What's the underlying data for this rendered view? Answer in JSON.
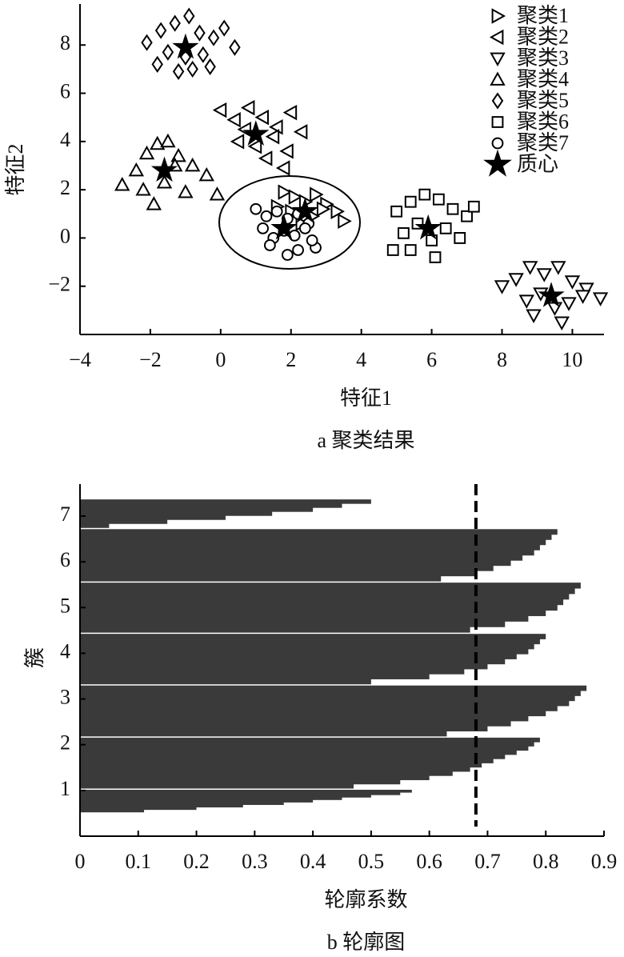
{
  "chart_data": [
    {
      "type": "scatter",
      "title": "a 聚类结果",
      "xlabel": "特征1",
      "ylabel": "特征2",
      "xlim": [
        -4,
        10.9
      ],
      "ylim": [
        -4,
        9.7
      ],
      "xticks": [
        {
          "value": -4,
          "label": "−4"
        },
        {
          "value": -2,
          "label": "−2"
        },
        0,
        2,
        4,
        6,
        8,
        10
      ],
      "yticks": [
        {
          "value": -2,
          "label": "−2"
        },
        0,
        2,
        4,
        6,
        8
      ],
      "legend": "upper right",
      "color": "#000000",
      "series": [
        {
          "name": "聚类1",
          "marker": "triangle-right",
          "x": [
            1.8,
            2.1,
            2.4,
            2.7,
            3.0,
            3.3,
            3.5,
            2.0,
            2.6,
            2.9,
            1.6,
            2.3
          ],
          "y": [
            1.9,
            1.7,
            1.5,
            1.8,
            1.4,
            1.1,
            0.7,
            1.1,
            0.9,
            1.2,
            1.3,
            0.6
          ]
        },
        {
          "name": "聚类2",
          "marker": "triangle-left",
          "x": [
            0,
            0.4,
            0.8,
            1.2,
            1.6,
            2.0,
            2.3,
            0.5,
            1.0,
            1.5,
            1.9,
            1.3,
            0.7,
            1.8
          ],
          "y": [
            5.3,
            4.9,
            5.4,
            5.0,
            4.6,
            5.2,
            4.4,
            4.0,
            3.8,
            4.2,
            3.6,
            3.3,
            4.5,
            2.9
          ]
        },
        {
          "name": "聚类3",
          "marker": "triangle-down",
          "x": [
            8,
            8.4,
            8.8,
            9.2,
            9.6,
            10,
            10.4,
            10.8,
            8.7,
            9.1,
            9.5,
            9.9,
            10.3,
            8.9,
            9.7
          ],
          "y": [
            -2.0,
            -1.7,
            -1.2,
            -1.5,
            -1.2,
            -1.8,
            -2.1,
            -2.5,
            -2.6,
            -2.3,
            -2.9,
            -2.7,
            -2.4,
            -3.2,
            -3.5
          ]
        },
        {
          "name": "聚类4",
          "marker": "triangle-up",
          "x": [
            -2.8,
            -2.4,
            -2.1,
            -1.8,
            -1.5,
            -1.2,
            -0.8,
            -0.4,
            -0.1,
            -2.2,
            -1.6,
            -1.0,
            -1.9,
            -1.3
          ],
          "y": [
            2.2,
            2.8,
            3.5,
            3.9,
            4.0,
            3.4,
            3.0,
            2.6,
            1.8,
            2.0,
            2.3,
            1.9,
            1.4,
            3.0
          ]
        },
        {
          "name": "聚类5",
          "marker": "diamond",
          "x": [
            -2.1,
            -1.7,
            -1.3,
            -0.9,
            -0.6,
            -0.2,
            0.1,
            0.4,
            -1.5,
            -1.0,
            -0.5,
            -1.8,
            -1.2,
            -0.8,
            -0.3
          ],
          "y": [
            8.1,
            8.6,
            8.9,
            9.2,
            8.5,
            8.3,
            8.7,
            7.9,
            7.7,
            7.5,
            7.6,
            7.2,
            6.9,
            7.0,
            7.1
          ]
        },
        {
          "name": "聚类6",
          "marker": "square",
          "x": [
            5,
            5.4,
            5.8,
            6.2,
            6.6,
            7.0,
            7.2,
            5.2,
            5.6,
            6.0,
            6.4,
            6.8,
            5.4,
            6.1,
            4.9
          ],
          "y": [
            1.1,
            1.5,
            1.8,
            1.6,
            1.2,
            0.9,
            1.3,
            0.2,
            0.6,
            -0.1,
            0.4,
            0.0,
            -0.5,
            -0.8,
            -0.5
          ]
        },
        {
          "name": "聚类7",
          "marker": "circle",
          "x": [
            1.0,
            1.3,
            1.6,
            1.9,
            2.2,
            2.5,
            1.2,
            1.5,
            1.8,
            2.1,
            2.4,
            2.7,
            1.4,
            1.9,
            2.2,
            2.6
          ],
          "y": [
            1.2,
            0.9,
            1.1,
            0.8,
            1.0,
            0.6,
            0.4,
            0.0,
            0.3,
            0.1,
            0.4,
            -0.4,
            -0.3,
            -0.7,
            -0.5,
            -0.1
          ]
        },
        {
          "name": "质心",
          "marker": "star",
          "x": [
            2.4,
            1.0,
            9.4,
            -1.6,
            -1.0,
            5.9,
            1.8
          ],
          "y": [
            1.1,
            4.3,
            -2.4,
            2.8,
            7.9,
            0.4,
            0.4
          ]
        }
      ]
    },
    {
      "type": "silhouette",
      "title": "b 轮廓图",
      "xlabel": "轮廓系数",
      "ylabel": "簇",
      "xlim": [
        0,
        0.9
      ],
      "ylim": [
        0,
        7.7
      ],
      "xticks": [
        0,
        0.1,
        0.2,
        0.3,
        0.4,
        0.5,
        0.6,
        0.7,
        0.8,
        0.9
      ],
      "yticks": [
        1,
        2,
        3,
        4,
        5,
        6,
        7
      ],
      "color": "#3a3a3a",
      "threshold": 0.68,
      "clusters": [
        {
          "range": [
            0.53,
            1.05
          ],
          "values": [
            0.11,
            0.2,
            0.28,
            0.35,
            0.4,
            0.45,
            0.5,
            0.55,
            0.57
          ]
        },
        {
          "range": [
            1.05,
            2.19
          ],
          "values": [
            0.47,
            0.55,
            0.6,
            0.64,
            0.67,
            0.69,
            0.71,
            0.73,
            0.75,
            0.77,
            0.78,
            0.79
          ]
        },
        {
          "range": [
            2.19,
            3.33
          ],
          "values": [
            0.63,
            0.7,
            0.74,
            0.77,
            0.8,
            0.82,
            0.84,
            0.85,
            0.86,
            0.87
          ]
        },
        {
          "range": [
            3.33,
            4.46
          ],
          "values": [
            0.5,
            0.6,
            0.66,
            0.7,
            0.73,
            0.75,
            0.77,
            0.78,
            0.79,
            0.8
          ]
        },
        {
          "range": [
            4.46,
            5.58
          ],
          "values": [
            0.67,
            0.73,
            0.77,
            0.8,
            0.82,
            0.83,
            0.84,
            0.85,
            0.86
          ]
        },
        {
          "range": [
            5.58,
            6.75
          ],
          "values": [
            0.62,
            0.68,
            0.71,
            0.74,
            0.76,
            0.78,
            0.79,
            0.8,
            0.81,
            0.82
          ]
        },
        {
          "range": [
            6.75,
            7.4
          ],
          "values": [
            0.05,
            0.15,
            0.25,
            0.33,
            0.4,
            0.45,
            0.5
          ]
        }
      ]
    }
  ]
}
